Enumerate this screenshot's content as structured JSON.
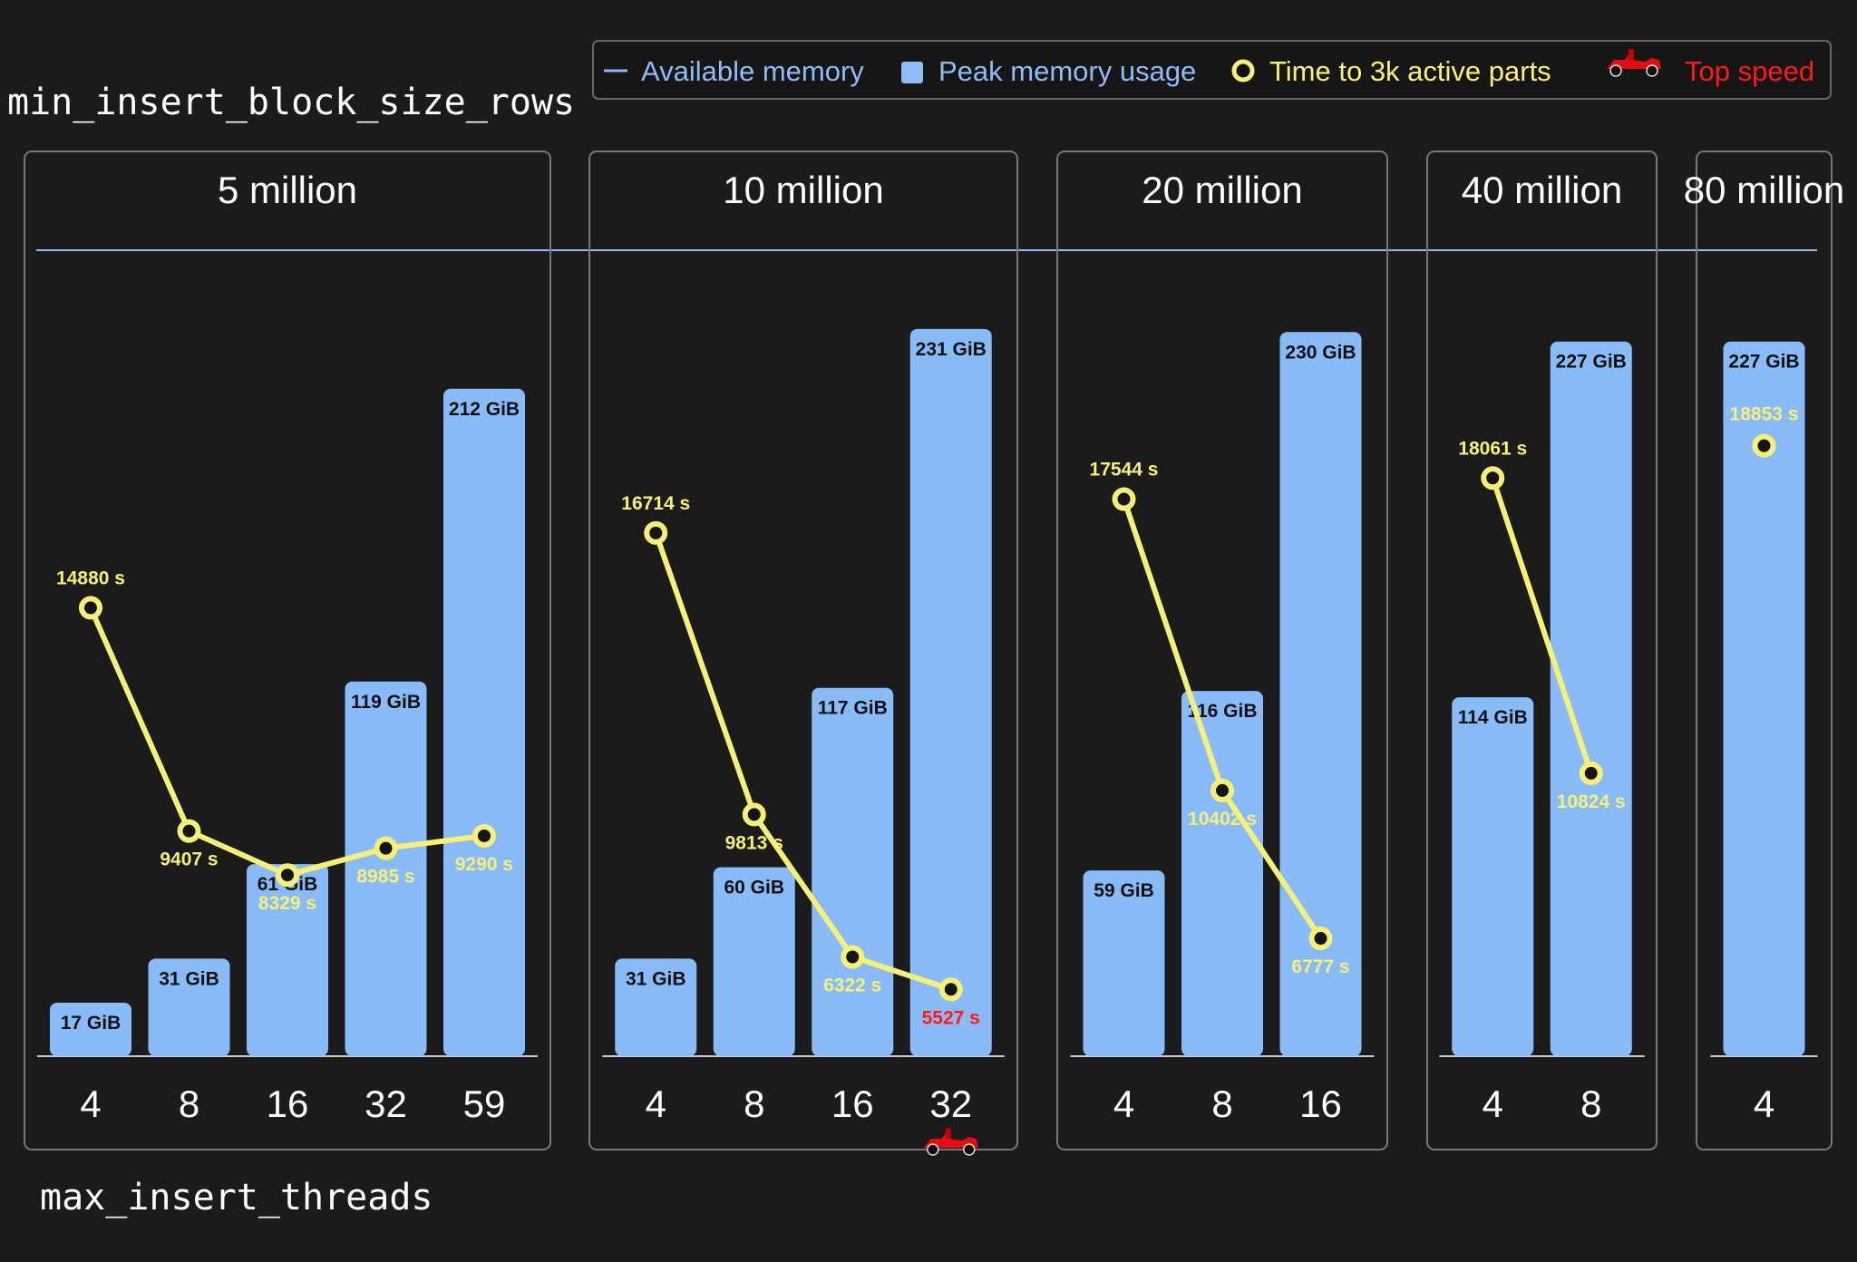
{
  "ylabel": "min_insert_block_size_rows",
  "xlabel": "max_insert_threads",
  "legend": {
    "items": [
      {
        "label": "Available memory",
        "symbol": "line-icon",
        "color": "#8fbcf6"
      },
      {
        "label": "Peak memory usage",
        "symbol": "square-icon",
        "color": "#8fbcf6"
      },
      {
        "label": "Time to 3k active parts",
        "symbol": "ring-icon",
        "color": "#fbf07a"
      },
      {
        "label": "Top speed",
        "symbol": "race-car-icon",
        "color": "#ff1a1a"
      }
    ]
  },
  "colors": {
    "bar": "#89bbf9",
    "line": "#f6f07a",
    "avail": "#8fbcf6",
    "text": "#ffffff",
    "red": "#ff1a1a",
    "panel_border": "#777777"
  },
  "chart_data": {
    "type": "bar",
    "xlabel": "max_insert_threads",
    "ylabel": "min_insert_block_size_rows",
    "available_memory_gib": 256,
    "panels": [
      {
        "title": "5 million",
        "categories": [
          "4",
          "8",
          "16",
          "32",
          "59"
        ],
        "memory_gib": [
          17,
          31,
          61,
          119,
          212
        ],
        "memory_labels": [
          "17 GiB",
          "31 GiB",
          "61 GiB",
          "119 GiB",
          "212 GiB"
        ],
        "time_s": [
          14880,
          9407,
          8329,
          8985,
          9290
        ],
        "time_labels": [
          "14880 s",
          "9407 s",
          "8329 s",
          "8985 s",
          "9290 s"
        ]
      },
      {
        "title": "10 million",
        "categories": [
          "4",
          "8",
          "16",
          "32"
        ],
        "memory_gib": [
          31,
          60,
          117,
          231
        ],
        "memory_labels": [
          "31 GiB",
          "60 GiB",
          "117 GiB",
          "231 GiB"
        ],
        "time_s": [
          16714,
          9813,
          6322,
          5527
        ],
        "time_labels": [
          "16714 s",
          "9813 s",
          "6322 s",
          "5527 s"
        ],
        "top_speed_category": "32"
      },
      {
        "title": "20 million",
        "categories": [
          "4",
          "8",
          "16"
        ],
        "memory_gib": [
          59,
          116,
          230
        ],
        "memory_labels": [
          "59 GiB",
          "116 GiB",
          "230 GiB"
        ],
        "time_s": [
          17544,
          10402,
          6777
        ],
        "time_labels": [
          "17544 s",
          "10402 s",
          "6777 s"
        ]
      },
      {
        "title": "40 million",
        "categories": [
          "4",
          "8"
        ],
        "memory_gib": [
          114,
          227
        ],
        "memory_labels": [
          "114 GiB",
          "227 GiB"
        ],
        "time_s": [
          18061,
          10824
        ],
        "time_labels": [
          "18061 s",
          "10824 s"
        ]
      },
      {
        "title": "80 million",
        "categories": [
          "4"
        ],
        "memory_gib": [
          227
        ],
        "memory_labels": [
          "227 GiB"
        ],
        "time_s": [
          18853
        ],
        "time_labels": [
          "18853 s"
        ]
      }
    ]
  }
}
